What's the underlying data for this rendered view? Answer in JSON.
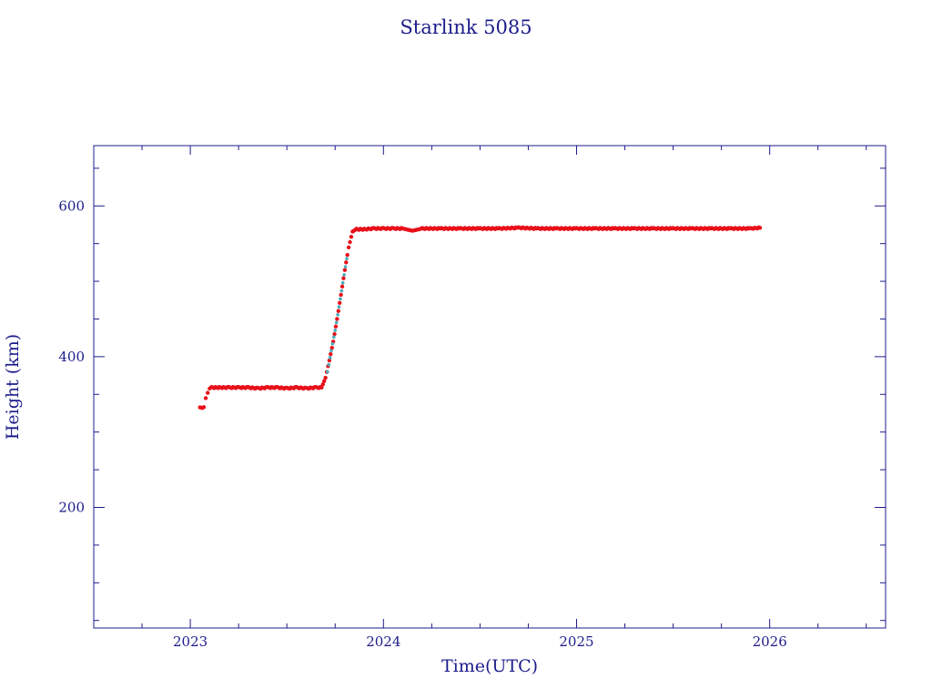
{
  "chart_data": {
    "type": "scatter",
    "title": "Starlink 5085",
    "xlabel": "Time(UTC)",
    "ylabel": "Height (km)",
    "xlim": [
      2022.5,
      2026.6
    ],
    "ylim": [
      40,
      680
    ],
    "x_major_ticks": [
      2023,
      2024,
      2025,
      2026
    ],
    "x_minor_ticks": [
      2022.75,
      2023.25,
      2023.5,
      2023.75,
      2024.25,
      2024.5,
      2024.75,
      2025.25,
      2025.5,
      2025.75,
      2026.25,
      2026.5
    ],
    "y_major_ticks": [
      200,
      400,
      600
    ],
    "y_minor_ticks": [
      50,
      100,
      150,
      250,
      300,
      350,
      450,
      500,
      550,
      650
    ],
    "x_tick_labels": [
      "2023",
      "2024",
      "2025",
      "2026"
    ],
    "y_tick_labels": [
      "200",
      "400",
      "600"
    ],
    "grid": false,
    "colors": {
      "axis": "#1c1c8c",
      "points": "#e8101a",
      "ascent_points": "#48a8b8"
    },
    "series": [
      {
        "marker_color": "#e8101a",
        "points": [
          [
            2023.05,
            332
          ],
          [
            2023.07,
            333
          ],
          [
            2023.08,
            345
          ],
          [
            2023.09,
            352
          ],
          [
            2023.1,
            357
          ],
          [
            2023.11,
            359
          ],
          [
            2023.15,
            359
          ],
          [
            2023.2,
            359
          ],
          [
            2023.25,
            359
          ],
          [
            2023.3,
            359
          ],
          [
            2023.35,
            358
          ],
          [
            2023.4,
            359
          ],
          [
            2023.45,
            359
          ],
          [
            2023.5,
            358
          ],
          [
            2023.55,
            359
          ],
          [
            2023.6,
            358
          ],
          [
            2023.65,
            359
          ],
          [
            2023.68,
            359
          ],
          [
            2023.7,
            372
          ],
          [
            2023.72,
            395
          ],
          [
            2023.74,
            420
          ],
          [
            2023.76,
            450
          ],
          [
            2023.78,
            482
          ],
          [
            2023.8,
            515
          ],
          [
            2023.82,
            545
          ],
          [
            2023.84,
            566
          ],
          [
            2023.86,
            569
          ],
          [
            2023.9,
            569
          ],
          [
            2023.95,
            570
          ],
          [
            2024.0,
            570
          ],
          [
            2024.05,
            570
          ],
          [
            2024.1,
            570
          ],
          [
            2024.15,
            567
          ],
          [
            2024.2,
            570
          ],
          [
            2024.3,
            570
          ],
          [
            2024.4,
            570
          ],
          [
            2024.5,
            570
          ],
          [
            2024.6,
            570
          ],
          [
            2024.7,
            571
          ],
          [
            2024.8,
            570
          ],
          [
            2024.9,
            570
          ],
          [
            2025.0,
            570
          ],
          [
            2025.1,
            570
          ],
          [
            2025.2,
            570
          ],
          [
            2025.3,
            570
          ],
          [
            2025.4,
            570
          ],
          [
            2025.5,
            570
          ],
          [
            2025.6,
            570
          ],
          [
            2025.7,
            570
          ],
          [
            2025.8,
            570
          ],
          [
            2025.9,
            570
          ],
          [
            2025.95,
            571
          ]
        ]
      },
      {
        "marker_color": "#48a8b8",
        "points": [
          [
            2023.71,
            380
          ],
          [
            2023.73,
            408
          ],
          [
            2023.75,
            435
          ],
          [
            2023.77,
            466
          ],
          [
            2023.79,
            498
          ],
          [
            2023.81,
            530
          ]
        ]
      }
    ]
  }
}
